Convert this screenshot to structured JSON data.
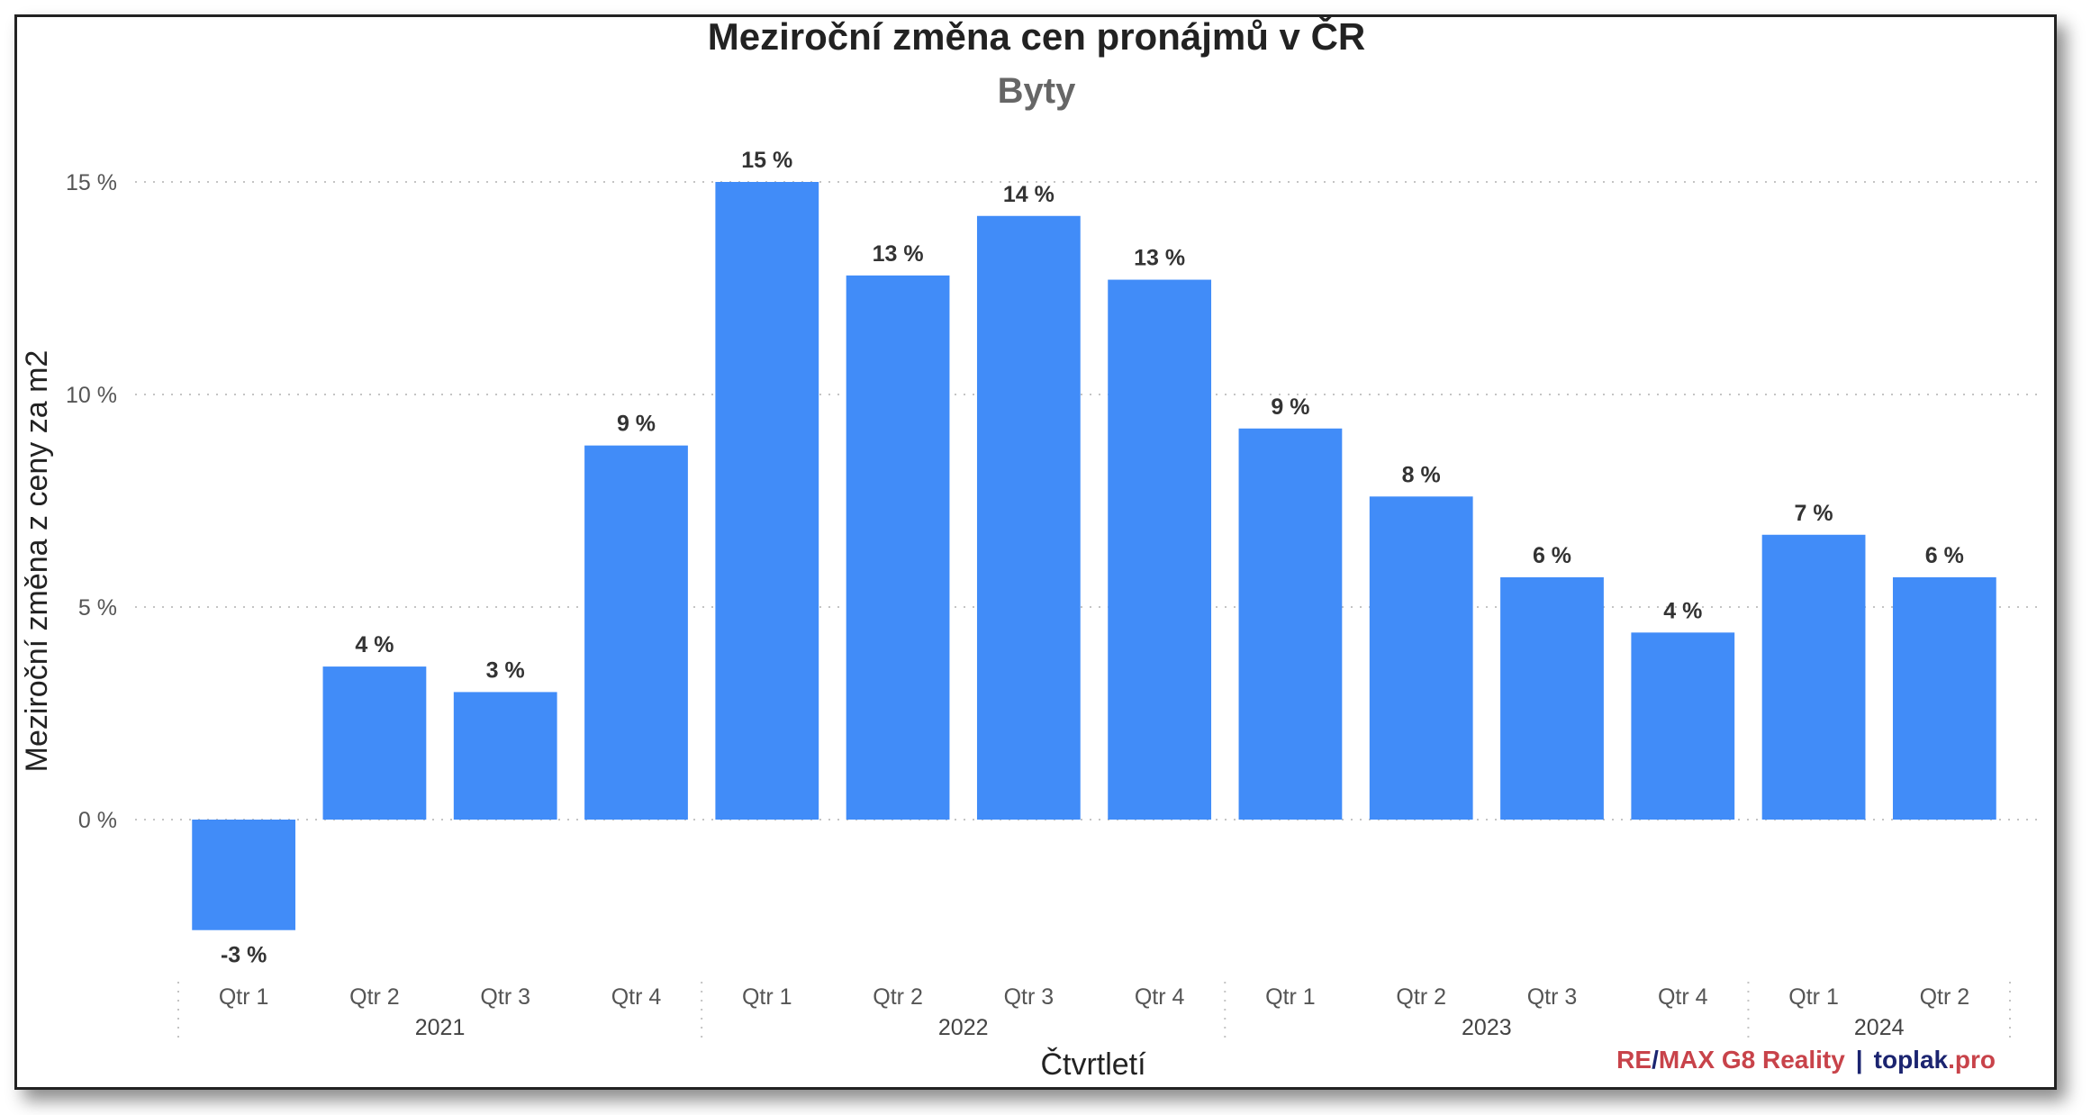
{
  "chart_data": {
    "type": "bar",
    "title": "Meziroční změna cen pronájmů v ČR",
    "subtitle": "Byty",
    "xlabel": "Čtvrtletí",
    "ylabel": "Meziroční změna z ceny za m2",
    "ylim": [
      -3.8,
      15.6
    ],
    "yticks": [
      0,
      5,
      10,
      15
    ],
    "ytick_labels": [
      "0 %",
      "5 %",
      "10 %",
      "15 %"
    ],
    "grid": "horizontal dotted",
    "categories": [
      {
        "quarter": "Qtr 1",
        "year": "2021"
      },
      {
        "quarter": "Qtr 2",
        "year": "2021"
      },
      {
        "quarter": "Qtr 3",
        "year": "2021"
      },
      {
        "quarter": "Qtr 4",
        "year": "2021"
      },
      {
        "quarter": "Qtr 1",
        "year": "2022"
      },
      {
        "quarter": "Qtr 2",
        "year": "2022"
      },
      {
        "quarter": "Qtr 3",
        "year": "2022"
      },
      {
        "quarter": "Qtr 4",
        "year": "2022"
      },
      {
        "quarter": "Qtr 1",
        "year": "2023"
      },
      {
        "quarter": "Qtr 2",
        "year": "2023"
      },
      {
        "quarter": "Qtr 3",
        "year": "2023"
      },
      {
        "quarter": "Qtr 4",
        "year": "2023"
      },
      {
        "quarter": "Qtr 1",
        "year": "2024"
      },
      {
        "quarter": "Qtr 2",
        "year": "2024"
      }
    ],
    "years": [
      "2021",
      "2022",
      "2023",
      "2024"
    ],
    "values": [
      -2.6,
      3.6,
      3.0,
      8.8,
      15.0,
      12.8,
      14.2,
      12.7,
      9.2,
      7.6,
      5.7,
      4.4,
      6.7,
      5.7
    ],
    "data_labels": [
      "-3 %",
      "4 %",
      "3 %",
      "9 %",
      "15 %",
      "13 %",
      "14 %",
      "13 %",
      "9 %",
      "8 %",
      "6 %",
      "4 %",
      "7 %",
      "6 %"
    ],
    "bar_color": "#418cf8"
  },
  "credit": {
    "re": "RE",
    "slash": "/",
    "max": "MAX G8 Reality",
    "sep": "|",
    "toplak": "toplak",
    "pro": ".pro",
    "colors": {
      "remax": "#c8434a",
      "toplak": "#1b2470",
      "pro": "#c8434a"
    }
  }
}
